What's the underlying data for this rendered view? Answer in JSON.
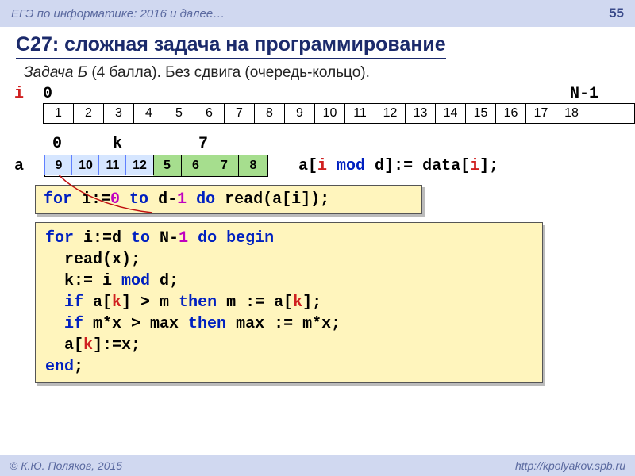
{
  "header": {
    "left": "ЕГЭ по информатике: 2016 и далее…",
    "page": "55"
  },
  "title": "С27: сложная задача на программирование",
  "subtitle": {
    "em": "Задача Б",
    "rest": " (4 балла). Без сдвига (очередь-кольцо)."
  },
  "labels": {
    "i": "i",
    "zero": "0",
    "n1": "N-1",
    "k": "k",
    "seven": "7",
    "a": "a"
  },
  "dataCells": [
    "1",
    "2",
    "3",
    "4",
    "5",
    "6",
    "7",
    "8",
    "9",
    "10",
    "11",
    "12",
    "13",
    "14",
    "15",
    "16",
    "17",
    "18"
  ],
  "aCells": [
    {
      "v": "9",
      "cls": "hl-blue"
    },
    {
      "v": "10",
      "cls": "hl-blue"
    },
    {
      "v": "11",
      "cls": "hl-blue"
    },
    {
      "v": "12",
      "cls": "hl-blue"
    },
    {
      "v": "5",
      "cls": "hl-green"
    },
    {
      "v": "6",
      "cls": "hl-green"
    },
    {
      "v": "7",
      "cls": "hl-green"
    },
    {
      "v": "8",
      "cls": "hl-green"
    }
  ],
  "assign": {
    "pre": "a[",
    "i": "i",
    "mod": " mod ",
    "d": "d",
    "post": "]:= data[",
    "i2": "i",
    "end": "];"
  },
  "code1": {
    "for": "for ",
    "i": "i:=",
    "z": "0",
    "to": " to ",
    "d1": "d-",
    "one": "1",
    "do": " do ",
    "read": "read(a[i]);"
  },
  "code2": {
    "l1a": "for ",
    "l1b": "i:=d ",
    "l1c": "to ",
    "l1d": "N-",
    "l1e": "1",
    "l1f": " do begin",
    "l2": "  read(x);",
    "l3a": "  k:= i ",
    "l3b": "mod",
    "l3c": " d;",
    "l4a": "  if ",
    "l4b": "a[",
    "l4k": "k",
    "l4c": "] > m ",
    "l4d": "then",
    "l4e": " m := a[",
    "l4k2": "k",
    "l4f": "];",
    "l5a": "  if ",
    "l5b": "m*x > max ",
    "l5c": "then",
    "l5d": " max := m*x;",
    "l6a": "  a[",
    "l6k": "k",
    "l6b": "]:=x;",
    "l7": "end",
    "l7b": ";"
  },
  "footer": {
    "left": "© К.Ю. Поляков, 2015",
    "right": "http://kpolyakov.spb.ru"
  }
}
